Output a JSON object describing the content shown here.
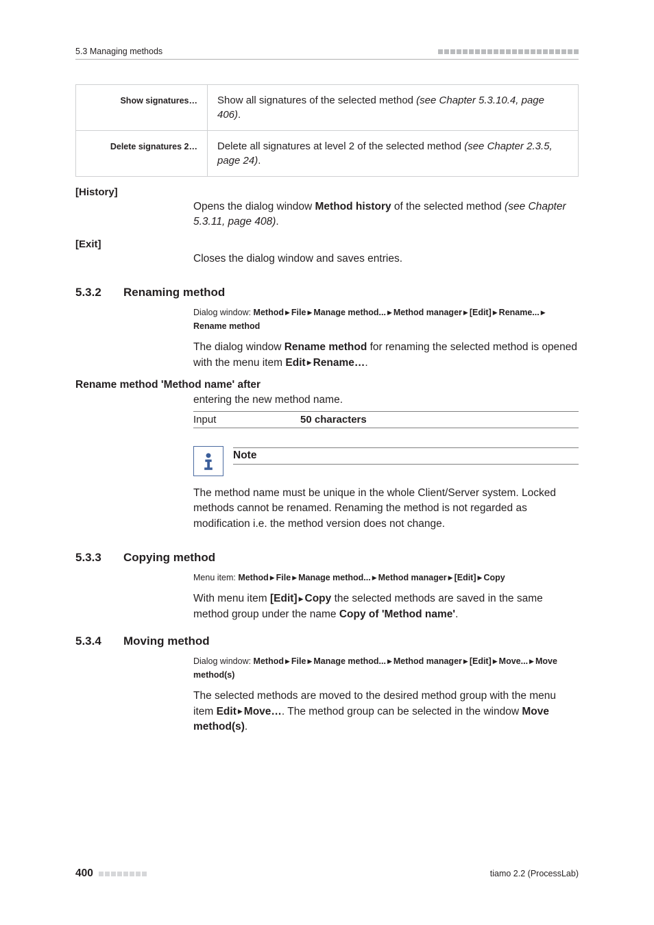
{
  "header": {
    "breadcrumb": "5.3 Managing methods",
    "dash_count": 23,
    "dash_color": "#b9bbbd"
  },
  "context_menu": [
    {
      "label": "Show signatures…",
      "desc_prefix": "Show all signatures of the selected method ",
      "desc_italic": "(see Chapter 5.3.10.4, page 406)",
      "desc_suffix": "."
    },
    {
      "label": "Delete signatures 2…",
      "desc_prefix": "Delete all signatures at level 2 of the selected method ",
      "desc_italic": "(see Chapter 2.3.5, page 24)",
      "desc_suffix": "."
    }
  ],
  "history": {
    "heading": "[History]",
    "text_before_bold": "Opens the dialog window ",
    "bold": "Method history",
    "text_after_bold": " of the selected method ",
    "italic": "(see Chapter 5.3.11, page 408)",
    "tail": "."
  },
  "exit": {
    "heading": "[Exit]",
    "text": "Closes the dialog window and saves entries."
  },
  "s532": {
    "num": "5.3.2",
    "title": "Renaming method",
    "path_label": "Dialog window: ",
    "path_parts": [
      "Method",
      "File",
      "Manage method...",
      "Method manager",
      "[Edit]",
      "Rename...",
      "Rename method"
    ],
    "para1_a": "The dialog window ",
    "para1_bold1": "Rename method",
    "para1_b": " for renaming the selected method is opened with the menu item ",
    "para1_bold2": "Edit",
    "para1_c": " ▸ ",
    "para1_bold3": "Rename…",
    "para1_d": ".",
    "rename_head": "Rename method 'Method name' after",
    "rename_body": "entering the new method name.",
    "input_left": "Input",
    "input_right": "50 characters",
    "note_title": "Note",
    "note_body": "The method name must be unique in the whole Client/Server system. Locked methods cannot be renamed. Renaming the method is not regarded as modification i.e. the method version does not change."
  },
  "s533": {
    "num": "5.3.3",
    "title": "Copying method",
    "path_label": "Menu item: ",
    "path_parts": [
      "Method",
      "File",
      "Manage method...",
      "Method manager",
      "[Edit]",
      "Copy"
    ],
    "para_a": "With menu item ",
    "para_bold1": "[Edit]",
    "para_b": " ▸ ",
    "para_bold2": "Copy",
    "para_c": " the selected methods are saved in the same method group under the name ",
    "para_bold3": "Copy of 'Method name'",
    "para_d": "."
  },
  "s534": {
    "num": "5.3.4",
    "title": "Moving method",
    "path_label": "Dialog window: ",
    "path_parts": [
      "Method",
      "File",
      "Manage method...",
      "Method manager",
      "[Edit]",
      "Move...",
      "Move method(s)"
    ],
    "para_a": "The selected methods are moved to the desired method group with the menu item ",
    "para_bold1": "Edit",
    "para_b": " ▸ ",
    "para_bold2": "Move…",
    "para_c": ". The method group can be selected in the window ",
    "para_bold3": "Move method(s)",
    "para_d": "."
  },
  "footer": {
    "page": "400",
    "dash_count": 8,
    "right": "tiamo 2.2 (ProcessLab)"
  }
}
